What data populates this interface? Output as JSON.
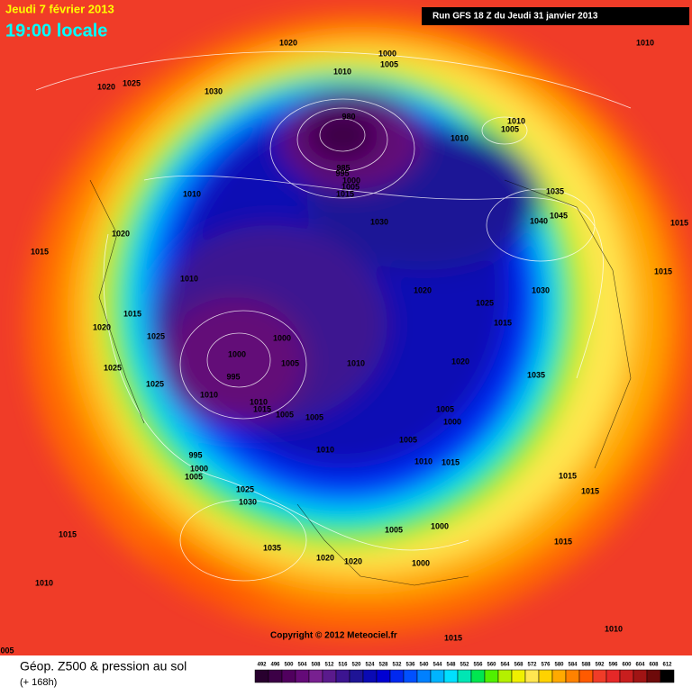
{
  "header": {
    "date": "Jeudi 7 février 2013",
    "time": "19:00 locale",
    "run": "Run GFS 18 Z du Jeudi 31 janvier 2013"
  },
  "isobar_labels": [
    "1020",
    "1000",
    "1005",
    "1010",
    "1020",
    "1025",
    "1030",
    "1010",
    "980",
    "1010",
    "1010",
    "1005",
    "985",
    "995",
    "1000",
    "1005",
    "1015",
    "1035",
    "1010",
    "1040",
    "1045",
    "1030",
    "1020",
    "1015",
    "1015",
    "1015",
    "1010",
    "1020",
    "1025",
    "1030",
    "1015",
    "1020",
    "1015",
    "1025",
    "1000",
    "1000",
    "1005",
    "1010",
    "1020",
    "1025",
    "995",
    "1035",
    "1025",
    "1010",
    "1010",
    "1015",
    "1005",
    "1005",
    "1005",
    "1000",
    "1005",
    "1010",
    "995",
    "1010",
    "1015",
    "1000",
    "1005",
    "1015",
    "1025",
    "1030",
    "1015",
    "1015",
    "1005",
    "1000",
    "1015",
    "1035",
    "1020",
    "1020",
    "1000",
    "1010",
    "1010",
    "1015",
    "005"
  ],
  "copyright": "Copyright © 2012 Meteociel.fr",
  "footer": {
    "title": "Géop. Z500 & pression au sol",
    "lead": "(+ 168h)"
  },
  "scale": {
    "values": [
      492,
      496,
      500,
      504,
      508,
      512,
      516,
      520,
      524,
      528,
      532,
      536,
      540,
      544,
      548,
      552,
      556,
      560,
      564,
      568,
      572,
      576,
      580,
      584,
      588,
      592,
      596,
      600,
      604,
      608,
      612
    ],
    "colors": [
      "#28002e",
      "#3c0046",
      "#50005e",
      "#640a78",
      "#782090",
      "#5a1a8c",
      "#3c1490",
      "#1e1496",
      "#0a0ab4",
      "#0000d2",
      "#0028f0",
      "#0050ff",
      "#0080ff",
      "#00b4ff",
      "#00e0ff",
      "#00e6b4",
      "#00e650",
      "#50f000",
      "#b4f000",
      "#f0f000",
      "#ffe650",
      "#ffd200",
      "#ffaa00",
      "#ff8200",
      "#ff5a00",
      "#f03c28",
      "#e62828",
      "#c81e1e",
      "#a01414",
      "#6e0a0a",
      "#000000"
    ]
  }
}
